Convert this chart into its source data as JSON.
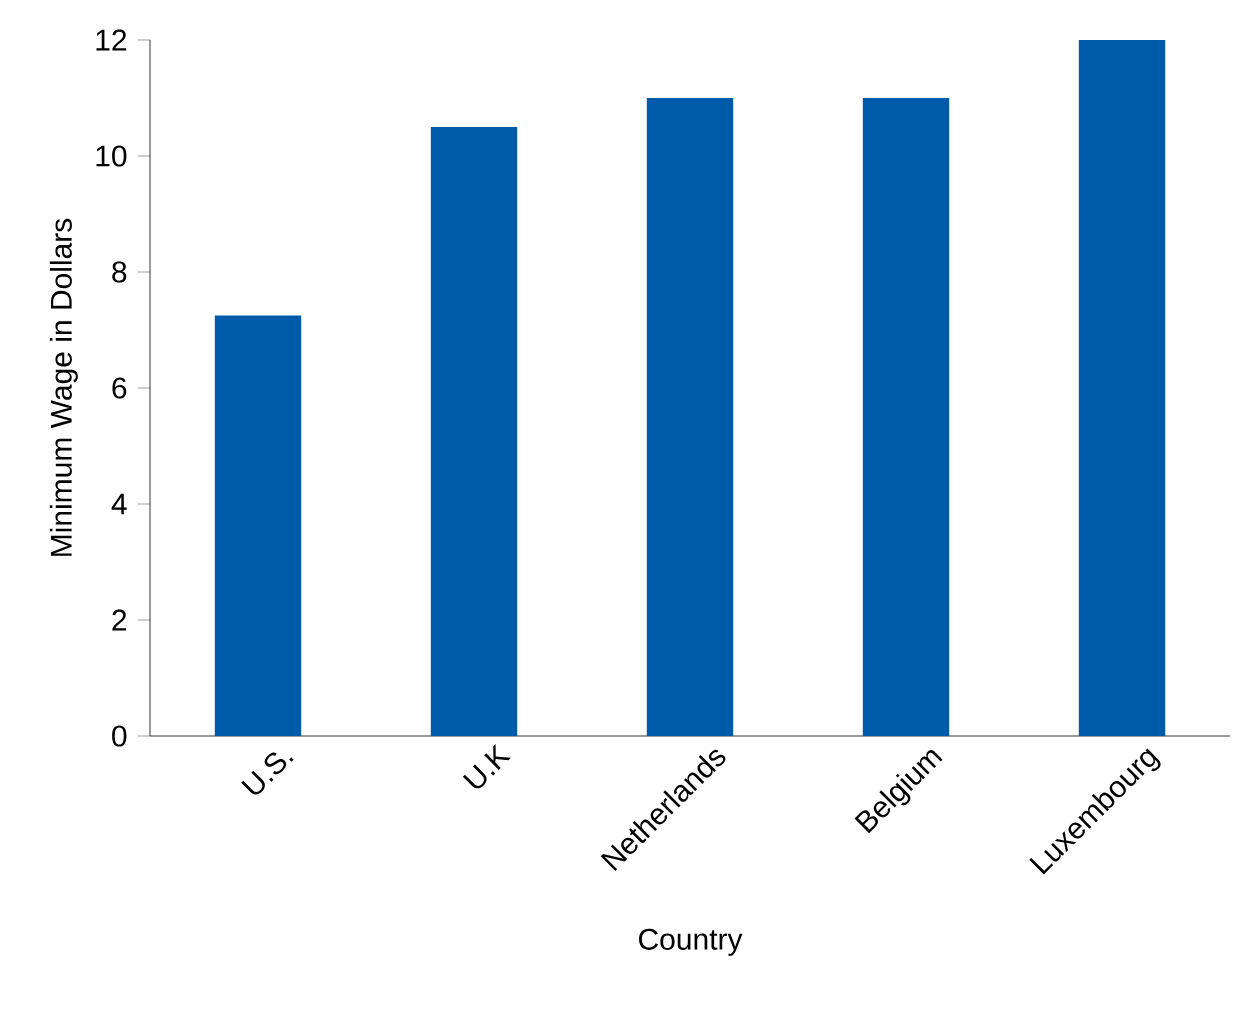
{
  "chart_data": {
    "type": "bar",
    "xlabel": "Country",
    "ylabel": "Minimum Wage in Dollars",
    "categories": [
      "U.S.",
      "U.K",
      "Netherlands",
      "Belgium",
      "Luxembourg"
    ],
    "values": [
      7.25,
      10.5,
      11,
      11,
      12
    ],
    "color": "#005baa",
    "ylim": [
      0,
      12
    ],
    "yticks": [
      0,
      2,
      4,
      6,
      8,
      10,
      12
    ]
  }
}
